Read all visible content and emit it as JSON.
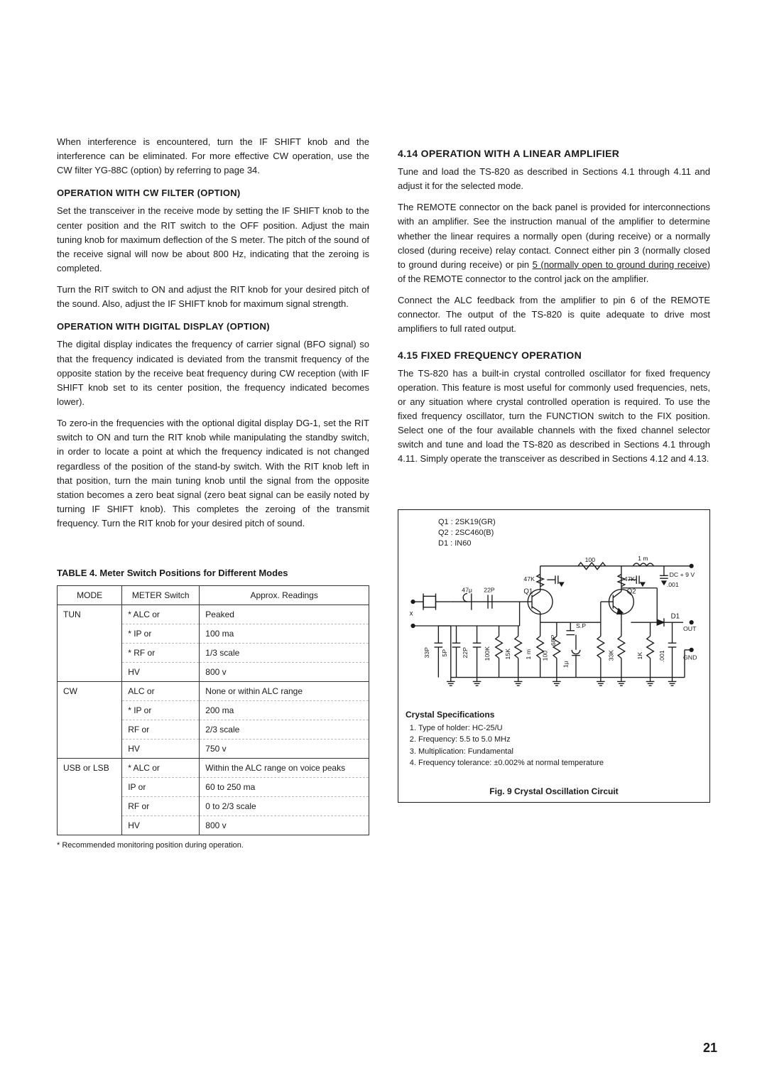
{
  "left": {
    "p0": "When interference is encountered, turn the IF SHIFT knob and the interference can be eliminated. For more effective CW operation, use the CW filter YG-88C (option) by referring to page 34.",
    "h1": "OPERATION WITH CW FILTER (OPTION)",
    "p1": "Set the transceiver in the receive mode by setting the IF SHIFT knob to the center position and the RIT switch to the OFF position. Adjust the main tuning knob for maximum deflection of the S meter. The pitch of the sound of the receive signal will now be about 800 Hz, indicating that the zeroing is completed.",
    "p2": "Turn the RIT switch to ON and adjust the RIT knob for your desired pitch of the sound. Also, adjust the IF SHIFT knob for maximum signal strength.",
    "h2": "OPERATION WITH DIGITAL DISPLAY (OPTION)",
    "p3": "The digital display indicates the frequency of carrier signal (BFO signal) so that the frequency indicated is deviated from the transmit frequency of the opposite station by the receive beat frequency during CW reception (with IF SHIFT knob set to its center position, the frequency indicated becomes lower).",
    "p4": "To zero-in the frequencies with the optional digital display DG-1, set the RIT switch to ON and turn the RIT knob while manipulating the standby switch, in order to locate a point at which the frequency indicated is not changed regardless of the position of the stand-by switch. With the RIT knob left in that position, turn the main tuning knob until the signal from the opposite station becomes a zero beat signal (zero beat signal can be easily noted by turning IF SHIFT knob). This completes the zeroing of the transmit frequency. Turn the RIT knob for your desired pitch of sound."
  },
  "right": {
    "h1": "4.14  OPERATION WITH A LINEAR AMPLIFIER",
    "p1": "Tune and load the TS-820 as described in Sections 4.1 through 4.11 and adjust it for the selected mode.",
    "p2a": "The REMOTE connector on the back panel is provided for interconnections with an amplifier. See the instruction manual of the amplifier to determine whether the linear requires a normally open (during receive) or a normally closed (during receive) relay contact. Connect either pin 3 (normally closed to ground during receive) or pin ",
    "p2u": "5 (normally open to ground during receive)",
    "p2b": " of the REMOTE connector to the control jack on the amplifier.",
    "p3": "Connect the ALC feedback from the amplifier to pin 6 of the REMOTE connector. The output of the TS-820 is quite adequate to drive most amplifiers to full rated output.",
    "h2": "4.15  FIXED FREQUENCY OPERATION",
    "p4": "The TS-820 has a built-in crystal controlled oscillator for fixed frequency operation. This feature is most useful for commonly used frequencies, nets, or any situation where crystal controlled operation is required. To use the fixed frequency oscillator, turn the FUNCTION switch to the FIX position. Select one of the four available channels with the fixed channel selector switch and tune and load the TS-820 as described in Sections 4.1 through 4.11. Simply operate the transceiver as described in Sections 4.12 and 4.13."
  },
  "table": {
    "title": "TABLE 4.  Meter Switch Positions for Different Modes",
    "headers": [
      "MODE",
      "METER Switch",
      "Approx. Readings"
    ],
    "rows": [
      [
        "TUN",
        "*  ALC or",
        "Peaked"
      ],
      [
        "",
        "*  IP or",
        "100 ma"
      ],
      [
        "",
        "*  RF or",
        "1/3 scale"
      ],
      [
        "",
        "   HV",
        "800 v"
      ],
      [
        "CW",
        "   ALC or",
        "None or within ALC range"
      ],
      [
        "",
        "*  IP or",
        "200 ma"
      ],
      [
        "",
        "   RF or",
        "2/3 scale"
      ],
      [
        "",
        "   HV",
        "750 v"
      ],
      [
        "USB or LSB",
        "*  ALC or",
        "Within the ALC range on voice peaks"
      ],
      [
        "",
        "   IP or",
        "60 to 250 ma"
      ],
      [
        "",
        "   RF or",
        "0 to 2/3 scale"
      ],
      [
        "",
        "   HV",
        "800 v"
      ]
    ],
    "footnote": "*  Recommended monitoring position during operation."
  },
  "figure": {
    "components": {
      "q1": "Q1 : 2SK19(GR)",
      "q2": "Q2 : 2SC460(B)",
      "d1": "D1 : IN60"
    },
    "labels": {
      "r100": "100",
      "l1m": "1 m",
      "dc9v": "DC + 9 V",
      "q1lab": "Q1",
      "q2lab": "Q2",
      "d1lab": "D1",
      "r47u": "47μ",
      "c22p": "22P",
      "sp": "S.P",
      "out": "OUT",
      "gnd": "GND",
      "x": "x",
      "c5p": "5P",
      "r33p": "33P",
      "c22p2": "22P",
      "r100k": "100K",
      "r15k": "15K",
      "r1m": "1 m",
      "c1u": "1μ",
      "r33k": "33K",
      "r1k": "1K",
      "c001u": ".001",
      "r100b": "100",
      "c68p": "68P",
      "r47k": "47K"
    },
    "spec_title": "Crystal Specifications",
    "specs": [
      "Type of holder:  HC-25/U",
      "Frequency:  5.5 to 5.0 MHz",
      "Multiplication:  Fundamental",
      "Frequency tolerance:  ±0.002% at normal temperature"
    ],
    "caption": "Fig. 9  Crystal Oscillation Circuit"
  },
  "page_number": "21",
  "colors": {
    "text": "#1a1a1a",
    "bg": "#ffffff",
    "rule": "#333333"
  }
}
